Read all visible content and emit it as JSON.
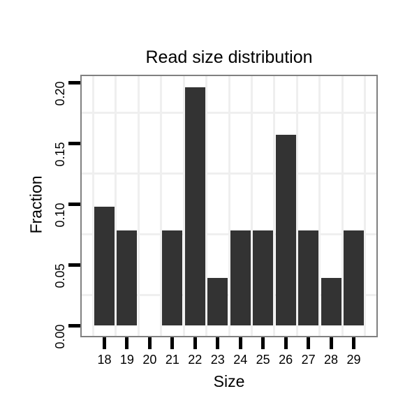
{
  "chart_data": {
    "type": "bar",
    "title": "Read size distribution",
    "xlabel": "Size",
    "ylabel": "Fraction",
    "categories": [
      "18",
      "19",
      "20",
      "21",
      "22",
      "23",
      "24",
      "25",
      "26",
      "27",
      "28",
      "29"
    ],
    "values": [
      0.098,
      0.078,
      0,
      0.078,
      0.196,
      0.039,
      0.078,
      0.078,
      0.157,
      0.078,
      0.039,
      0.078
    ],
    "y_ticks": [
      {
        "label": "0.00",
        "value": 0.0
      },
      {
        "label": "0.05",
        "value": 0.05
      },
      {
        "label": "0.10",
        "value": 0.1
      },
      {
        "label": "0.15",
        "value": 0.15
      },
      {
        "label": "0.20",
        "value": 0.2
      }
    ],
    "ylim": [
      -0.0098,
      0.2058
    ],
    "grid": "minor-only",
    "legend": "none",
    "colors": {
      "bar_fill": "#333333",
      "panel_background": "#ffffff",
      "panel_border": "#808080",
      "grid_minor": "#efefef",
      "tick": "#000000",
      "text": "#000000"
    }
  }
}
